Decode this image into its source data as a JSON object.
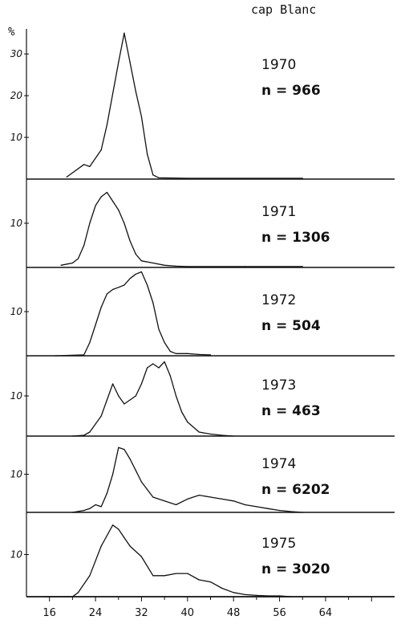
{
  "page_title": "cap Blanc",
  "y_unit": "%",
  "chart_data": [
    {
      "type": "line",
      "year_label": "1970",
      "n_label": "n = 966",
      "y_ticks": [
        "30",
        "20",
        "10"
      ],
      "y_tick_values": [
        30,
        20,
        10
      ],
      "ylim": [
        0,
        36
      ],
      "x": [
        19,
        22,
        23,
        25,
        26,
        28,
        29,
        30,
        31,
        32,
        33,
        34,
        35,
        40,
        50,
        60
      ],
      "y": [
        0.5,
        3.5,
        3.0,
        7,
        13,
        28,
        35,
        28,
        21,
        15,
        6,
        1,
        0.3,
        0.2,
        0.2,
        0.2
      ]
    },
    {
      "type": "line",
      "year_label": "1971",
      "n_label": "n = 1306",
      "y_ticks": [
        "10"
      ],
      "y_tick_values": [
        10
      ],
      "ylim": [
        0,
        20
      ],
      "x": [
        18,
        20,
        21,
        22,
        23,
        24,
        25,
        26,
        27,
        28,
        29,
        30,
        31,
        32,
        34,
        36,
        38,
        40,
        50,
        60
      ],
      "y": [
        0.5,
        1,
        2,
        5,
        10,
        14,
        16,
        17,
        15,
        13,
        10,
        6,
        3,
        1.5,
        1,
        0.5,
        0.3,
        0.2,
        0.2,
        0.2
      ]
    },
    {
      "type": "line",
      "year_label": "1972",
      "n_label": "n = 504",
      "y_ticks": [
        "10"
      ],
      "y_tick_values": [
        10
      ],
      "ylim": [
        0,
        20
      ],
      "x": [
        17,
        22,
        23,
        24,
        25,
        26,
        27,
        28,
        29,
        30,
        31,
        32,
        33,
        34,
        35,
        36,
        37,
        38,
        40,
        42,
        44
      ],
      "y": [
        0,
        0.2,
        3,
        7,
        11,
        14,
        15,
        15.5,
        16,
        17.5,
        18.5,
        19,
        16,
        12,
        6,
        3,
        1,
        0.5,
        0.5,
        0.3,
        0.2
      ]
    },
    {
      "type": "line",
      "year_label": "1973",
      "n_label": "n = 463",
      "y_ticks": [
        "10"
      ],
      "y_tick_values": [
        10
      ],
      "ylim": [
        0,
        20
      ],
      "x": [
        20,
        22,
        23,
        25,
        26,
        27,
        28,
        29,
        30,
        31,
        32,
        33,
        34,
        35,
        36,
        37,
        38,
        39,
        40,
        42,
        44,
        46,
        48
      ],
      "y": [
        0,
        0.2,
        1,
        5,
        9,
        13,
        10,
        8,
        9,
        10,
        13,
        17,
        18,
        17,
        18.5,
        15,
        10,
        6,
        3.5,
        1,
        0.5,
        0.2,
        0
      ]
    },
    {
      "type": "line",
      "year_label": "1974",
      "n_label": "n = 6202",
      "y_ticks": [
        "10"
      ],
      "y_tick_values": [
        10
      ],
      "ylim": [
        0,
        20
      ],
      "x": [
        20,
        22,
        23,
        24,
        25,
        26,
        27,
        28,
        29,
        30,
        31,
        32,
        34,
        36,
        38,
        40,
        42,
        44,
        46,
        48,
        50,
        52,
        54,
        56,
        58,
        60
      ],
      "y": [
        0,
        0.5,
        1,
        2,
        1.5,
        5,
        10,
        17,
        16.5,
        14,
        11,
        8,
        4,
        3,
        2,
        3.5,
        4.5,
        4,
        3.5,
        3,
        2,
        1.5,
        1,
        0.5,
        0.2,
        0
      ]
    },
    {
      "type": "line",
      "year_label": "1975",
      "n_label": "n = 3020",
      "y_ticks": [
        "10"
      ],
      "y_tick_values": [
        10
      ],
      "ylim": [
        0,
        20
      ],
      "x": [
        15,
        20,
        21,
        23,
        25,
        27,
        28,
        29,
        30,
        32,
        34,
        36,
        38,
        40,
        42,
        44,
        46,
        48,
        50,
        52,
        54,
        56,
        58
      ],
      "y": [
        0,
        0,
        1,
        5,
        12,
        17,
        16,
        14,
        12,
        9.5,
        5,
        5,
        5.5,
        5.5,
        4,
        3.5,
        2,
        1,
        0.5,
        0.3,
        0.2,
        0.2,
        0
      ]
    }
  ],
  "x_axis": {
    "tick_labels": [
      "16",
      "24",
      "32",
      "40",
      "48",
      "56",
      "64"
    ],
    "tick_values": [
      16,
      24,
      32,
      40,
      48,
      56,
      64
    ],
    "xlim": [
      12,
      76
    ]
  }
}
